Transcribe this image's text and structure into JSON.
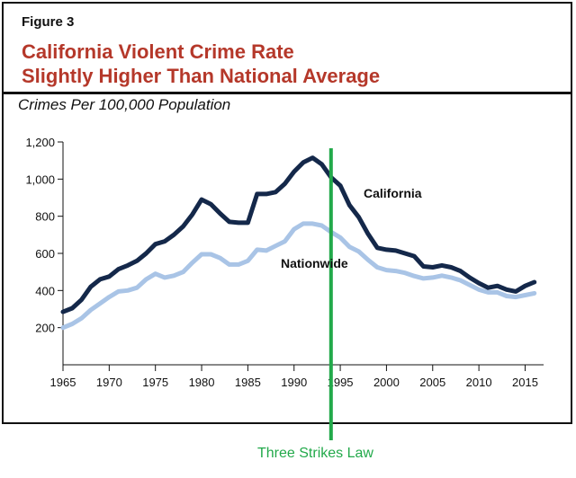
{
  "figure_label": "Figure 3",
  "title_line1": "California Violent Crime Rate",
  "title_line2": "Slightly Higher Than National Average",
  "subtitle": "Crimes Per 100,000 Population",
  "annotation": "Three Strikes Law",
  "colors": {
    "california": "#14284a",
    "nationwide": "#a9c4e6",
    "law_line": "#22a94a",
    "title": "#b5382a"
  },
  "chart_data": {
    "type": "line",
    "title": "California Violent Crime Rate Slightly Higher Than National Average",
    "ylabel": "Crimes Per 100,000 Population",
    "xlabel": "",
    "xlim": [
      1965,
      2017
    ],
    "ylim": [
      0,
      1200
    ],
    "x_ticks": [
      1965,
      1970,
      1975,
      1980,
      1985,
      1990,
      1995,
      2000,
      2005,
      2010,
      2015
    ],
    "x_tick_labels": [
      "1965",
      "1970",
      "1975",
      "1980",
      "1985",
      "1990",
      "1995",
      "2000",
      "2005",
      "2010",
      "2015"
    ],
    "y_ticks": [
      200,
      400,
      600,
      800,
      1000,
      1200
    ],
    "y_tick_labels": [
      "200",
      "400",
      "600",
      "800",
      "1,000",
      "1,200"
    ],
    "grid": false,
    "x": [
      1965,
      1966,
      1967,
      1968,
      1969,
      1970,
      1971,
      1972,
      1973,
      1974,
      1975,
      1976,
      1977,
      1978,
      1979,
      1980,
      1981,
      1982,
      1983,
      1984,
      1985,
      1986,
      1987,
      1988,
      1989,
      1990,
      1991,
      1992,
      1993,
      1994,
      1995,
      1996,
      1997,
      1998,
      1999,
      2000,
      2001,
      2002,
      2003,
      2004,
      2005,
      2006,
      2007,
      2008,
      2009,
      2010,
      2011,
      2012,
      2013,
      2014,
      2015,
      2016
    ],
    "series": [
      {
        "name": "California",
        "values": [
          285,
          305,
          350,
          420,
          460,
          475,
          515,
          535,
          560,
          600,
          650,
          665,
          700,
          745,
          810,
          890,
          865,
          815,
          770,
          765,
          765,
          920,
          920,
          930,
          975,
          1040,
          1090,
          1115,
          1080,
          1010,
          965,
          860,
          795,
          705,
          630,
          620,
          615,
          600,
          585,
          530,
          525,
          535,
          525,
          505,
          470,
          440,
          415,
          425,
          405,
          395,
          425,
          445
        ]
      },
      {
        "name": "Nationwide",
        "values": [
          200,
          220,
          250,
          295,
          330,
          365,
          395,
          400,
          415,
          460,
          490,
          470,
          480,
          500,
          550,
          595,
          595,
          575,
          540,
          540,
          560,
          620,
          615,
          640,
          665,
          730,
          760,
          760,
          750,
          715,
          685,
          635,
          610,
          565,
          525,
          510,
          505,
          495,
          478,
          465,
          470,
          480,
          470,
          455,
          430,
          405,
          390,
          390,
          370,
          365,
          375,
          385
        ]
      }
    ],
    "vertical_marker": {
      "x": 1994,
      "label": "Three Strikes Law"
    },
    "series_labels": [
      {
        "series": "California",
        "text": "California"
      },
      {
        "series": "Nationwide",
        "text": "Nationwide"
      }
    ]
  }
}
